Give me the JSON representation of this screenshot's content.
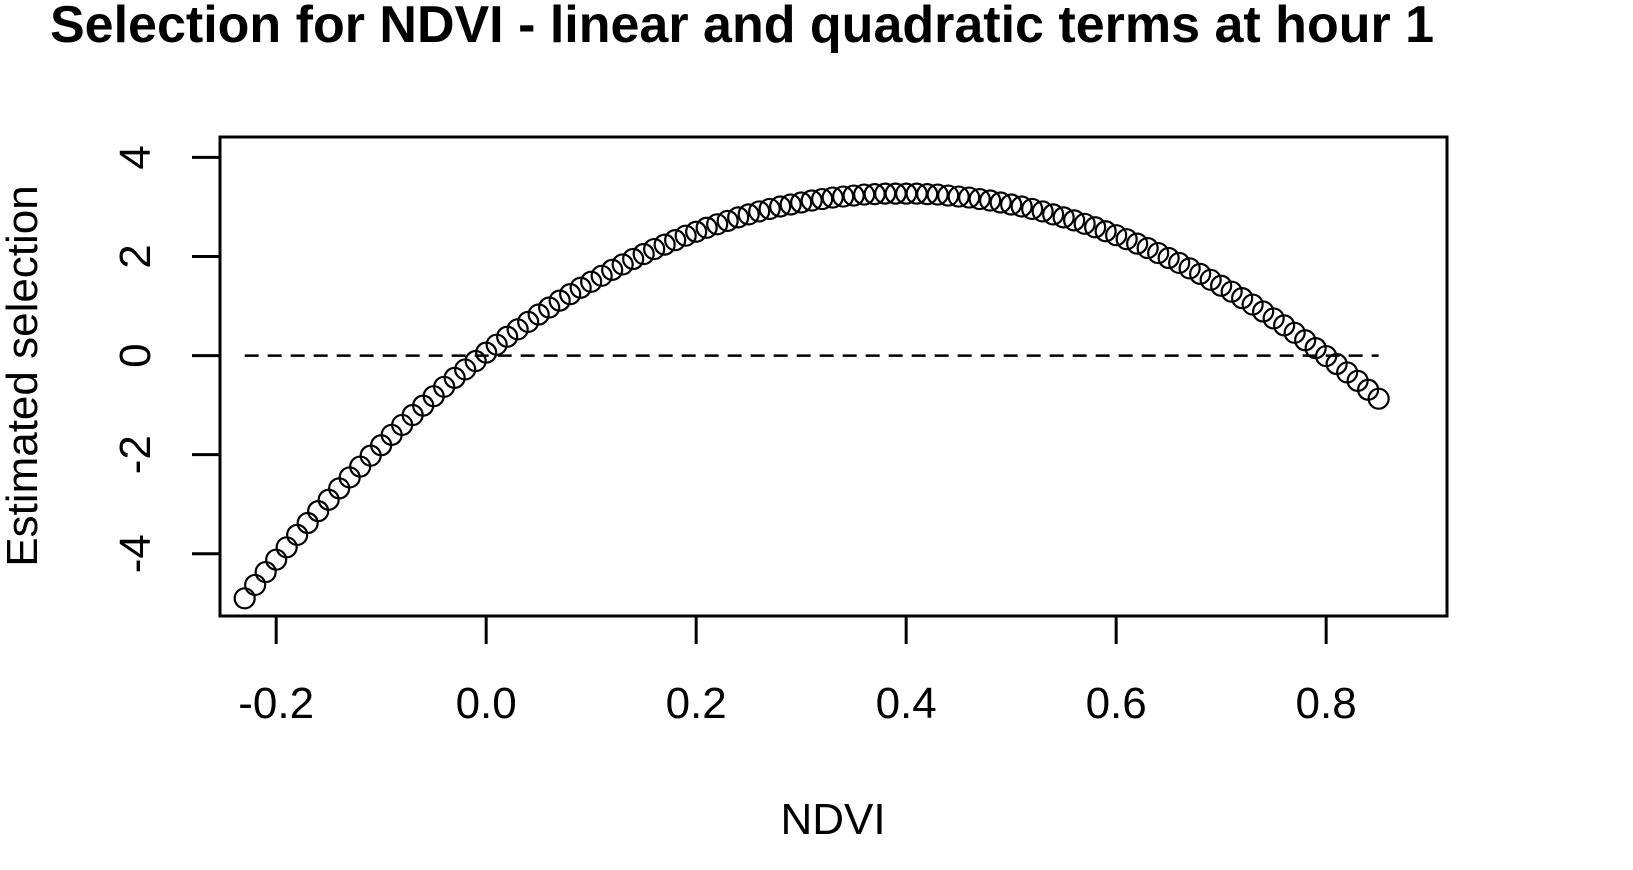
{
  "chart_data": {
    "type": "scatter",
    "title": "Selection for NDVI - linear and quadratic terms at hour 1",
    "xlabel": "NDVI",
    "ylabel": "Estimated selection",
    "xlim": [
      -0.2535,
      0.9151
    ],
    "ylim": [
      -5.2571,
      4.4125
    ],
    "x_ticks": [
      -0.2,
      0.0,
      0.2,
      0.4,
      0.6,
      0.8
    ],
    "x_tick_labels": [
      "-0.2",
      "0.0",
      "0.2",
      "0.4",
      "0.6",
      "0.8"
    ],
    "y_ticks": [
      -4,
      -2,
      0,
      2,
      4
    ],
    "y_tick_labels": [
      "-4",
      "-2",
      "0",
      "2",
      "4"
    ],
    "grid": false,
    "legend": "none",
    "reference_line": {
      "y": 0,
      "x_from": -0.23,
      "x_to": 0.85,
      "style": "dashed"
    },
    "series": [
      {
        "marker": "open-circle",
        "x": [
          -0.23,
          -0.22,
          -0.21,
          -0.2,
          -0.19,
          -0.18,
          -0.17,
          -0.16,
          -0.15,
          -0.14,
          -0.13,
          -0.12,
          -0.11,
          -0.1,
          -0.09,
          -0.08,
          -0.07,
          -0.06,
          -0.05,
          -0.04,
          -0.03,
          -0.02,
          -0.01,
          0.0,
          0.01,
          0.02,
          0.03,
          0.04,
          0.05,
          0.06,
          0.07,
          0.08,
          0.09,
          0.1,
          0.11,
          0.12,
          0.13,
          0.14,
          0.15,
          0.16,
          0.17,
          0.18,
          0.19,
          0.2,
          0.21,
          0.22,
          0.23,
          0.24,
          0.25,
          0.26,
          0.27,
          0.28,
          0.29,
          0.3,
          0.31,
          0.32,
          0.33,
          0.34,
          0.35,
          0.36,
          0.37,
          0.38,
          0.39,
          0.4,
          0.41,
          0.42,
          0.43,
          0.44,
          0.45,
          0.46,
          0.47,
          0.48,
          0.49,
          0.5,
          0.51,
          0.52,
          0.53,
          0.54,
          0.55,
          0.56,
          0.57,
          0.58,
          0.59,
          0.6,
          0.61,
          0.62,
          0.63,
          0.64,
          0.65,
          0.66,
          0.67,
          0.68,
          0.69,
          0.7,
          0.71,
          0.72,
          0.73,
          0.74,
          0.75,
          0.76,
          0.77,
          0.78,
          0.79,
          0.8,
          0.81,
          0.82,
          0.83,
          0.84,
          0.85
        ],
        "y": [
          -4.9,
          -4.63,
          -4.37,
          -4.12,
          -3.87,
          -3.62,
          -3.38,
          -3.14,
          -2.91,
          -2.68,
          -2.46,
          -2.24,
          -2.02,
          -1.81,
          -1.6,
          -1.4,
          -1.2,
          -1.01,
          -0.82,
          -0.63,
          -0.45,
          -0.28,
          -0.11,
          0.06,
          0.22,
          0.38,
          0.53,
          0.68,
          0.83,
          0.97,
          1.11,
          1.24,
          1.37,
          1.49,
          1.61,
          1.73,
          1.84,
          1.95,
          2.05,
          2.15,
          2.24,
          2.33,
          2.42,
          2.5,
          2.58,
          2.65,
          2.72,
          2.79,
          2.85,
          2.91,
          2.96,
          3.01,
          3.05,
          3.09,
          3.13,
          3.16,
          3.19,
          3.21,
          3.23,
          3.25,
          3.26,
          3.27,
          3.27,
          3.27,
          3.27,
          3.26,
          3.25,
          3.23,
          3.21,
          3.19,
          3.16,
          3.13,
          3.09,
          3.05,
          3.01,
          2.96,
          2.91,
          2.85,
          2.79,
          2.73,
          2.66,
          2.59,
          2.51,
          2.43,
          2.35,
          2.26,
          2.17,
          2.07,
          1.97,
          1.87,
          1.76,
          1.65,
          1.53,
          1.41,
          1.29,
          1.16,
          1.03,
          0.89,
          0.75,
          0.61,
          0.46,
          0.31,
          0.15,
          -0.01,
          -0.17,
          -0.34,
          -0.51,
          -0.69,
          -0.87
        ]
      }
    ]
  }
}
